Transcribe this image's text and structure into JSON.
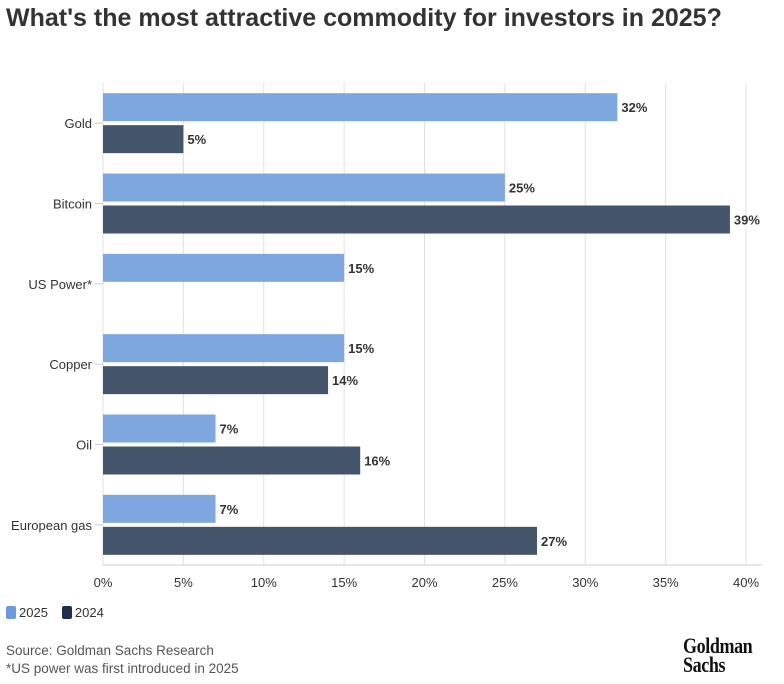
{
  "chart_data": {
    "type": "bar",
    "orientation": "horizontal",
    "title": "What's the most attractive commodity for investors in 2025?",
    "categories": [
      "Gold",
      "Bitcoin",
      "US Power*",
      "Copper",
      "Oil",
      "European gas"
    ],
    "series": [
      {
        "name": "2025",
        "color": "#7ea7df",
        "values": [
          32,
          25,
          15,
          15,
          7,
          7
        ]
      },
      {
        "name": "2024",
        "color": "#44546a",
        "values": [
          5,
          39,
          null,
          14,
          16,
          27
        ]
      }
    ],
    "xlim": [
      0,
      40
    ],
    "xticks": [
      "0%",
      "5%",
      "10%",
      "15%",
      "20%",
      "25%",
      "30%",
      "35%",
      "40%"
    ],
    "grid": true,
    "legend_position": "bottom-left",
    "value_suffix": "%"
  },
  "legend": {
    "s2025": "2025",
    "s2024": "2024"
  },
  "footer": {
    "source": "Source: Goldman Sachs Research",
    "note": "*US power was first introduced in 2025"
  },
  "logo": {
    "line1": "Goldman",
    "line2": "Sachs"
  }
}
